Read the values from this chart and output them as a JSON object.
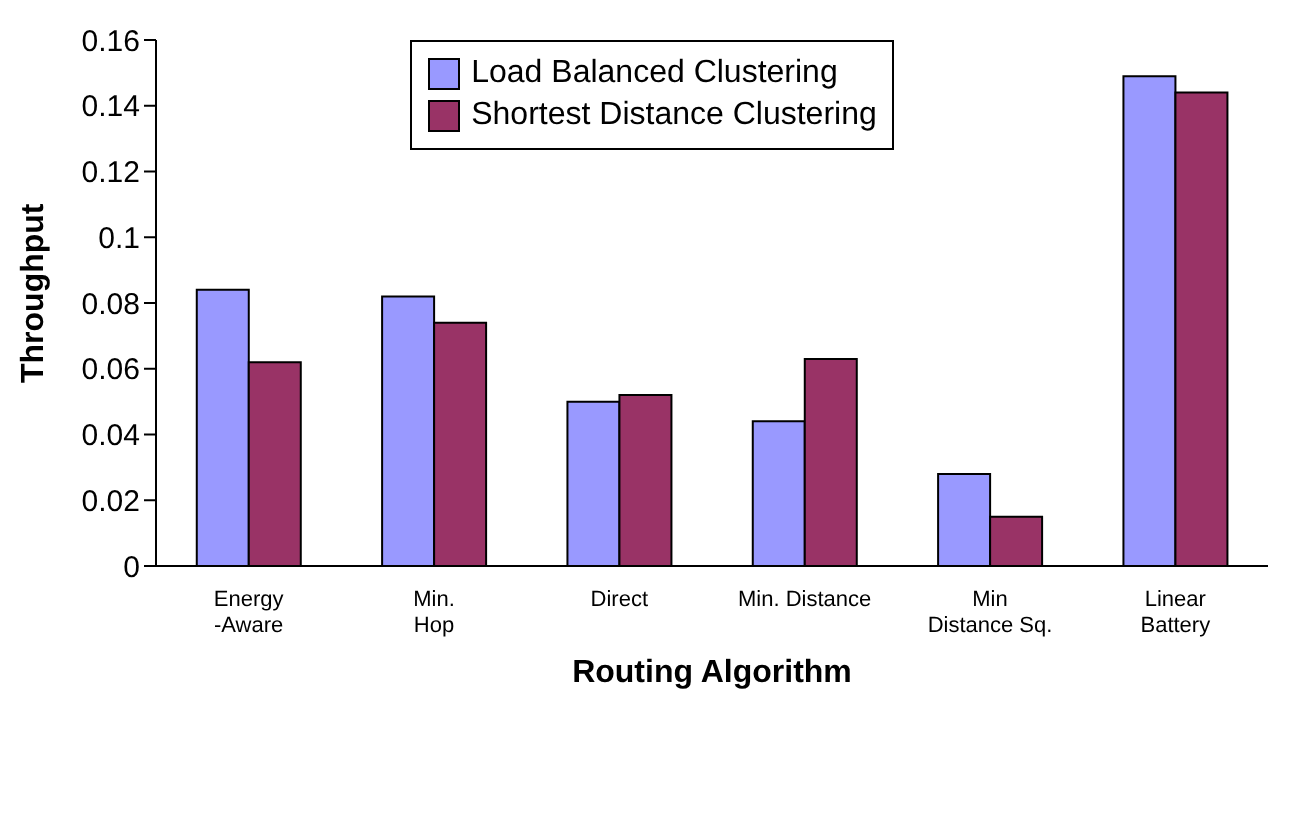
{
  "chart_data": {
    "type": "bar",
    "xlabel": "Routing Algorithm",
    "ylabel": "Throughput",
    "categories": [
      "Energy\n-Aware",
      "Min.\nHop",
      "Direct",
      "Min. Distance",
      "Min\nDistance Sq.",
      "Linear\nBattery"
    ],
    "series": [
      {
        "name": "Load Balanced Clustering",
        "color": "#9999ff",
        "values": [
          0.084,
          0.082,
          0.05,
          0.044,
          0.028,
          0.149
        ]
      },
      {
        "name": "Shortest Distance Clustering",
        "color": "#993366",
        "values": [
          0.062,
          0.074,
          0.052,
          0.063,
          0.015,
          0.144
        ]
      }
    ],
    "ylim": [
      0,
      0.16
    ],
    "yticks": [
      0,
      0.02,
      0.04,
      0.06,
      0.08,
      0.1,
      0.12,
      0.14,
      0.16
    ],
    "grid": false,
    "legend": "top"
  }
}
